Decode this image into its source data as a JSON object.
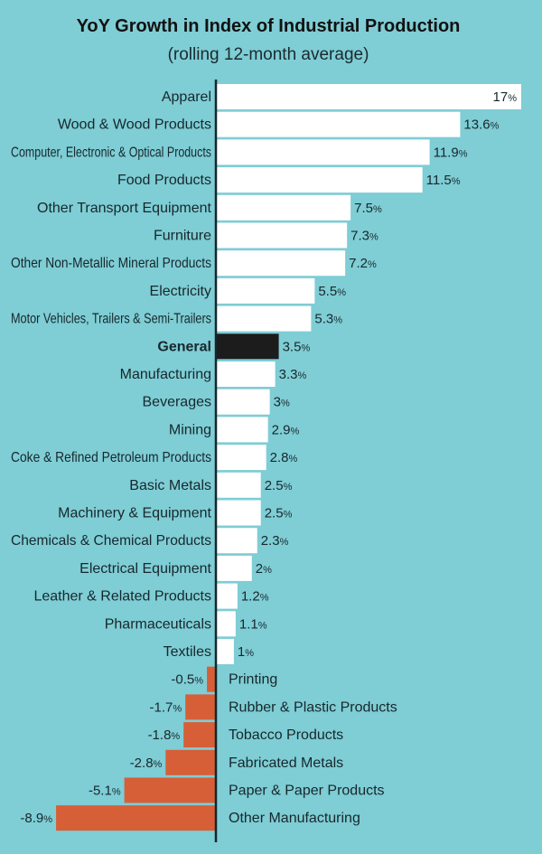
{
  "chart_data": {
    "type": "bar",
    "orientation": "horizontal",
    "title": "YoY Growth in Index of Industrial Production",
    "subtitle": "(rolling 12-month average)",
    "unit": "%",
    "categories": [
      "Apparel",
      "Wood & Wood Products",
      "Computer, Electronic & Optical Products",
      "Food Products",
      "Other Transport Equipment",
      "Furniture",
      "Other Non-Metallic Mineral Products",
      "Electricity",
      "Motor Vehicles, Trailers & Semi-Trailers",
      "General",
      "Manufacturing",
      "Beverages",
      "Mining",
      "Coke & Refined Petroleum Products",
      "Basic Metals",
      "Machinery & Equipment",
      "Chemicals & Chemical Products",
      "Electrical Equipment",
      "Leather & Related Products",
      "Pharmaceuticals",
      "Textiles",
      "Printing",
      "Rubber & Plastic Products",
      "Tobacco Products",
      "Fabricated Metals",
      "Paper & Paper Products",
      "Other Manufacturing"
    ],
    "values": [
      17,
      13.6,
      11.9,
      11.5,
      7.5,
      7.3,
      7.2,
      5.5,
      5.3,
      3.5,
      3.3,
      3,
      2.9,
      2.8,
      2.5,
      2.5,
      2.3,
      2,
      1.2,
      1.1,
      1,
      -0.5,
      -1.7,
      -1.8,
      -2.8,
      -5.1,
      -8.9
    ],
    "value_labels": [
      "17",
      "13.6",
      "11.9",
      "11.5",
      "7.5",
      "7.3",
      "7.2",
      "5.5",
      "5.3",
      "3.5",
      "3.3",
      "3",
      "2.9",
      "2.8",
      "2.5",
      "2.5",
      "2.3",
      "2",
      "1.2",
      "1.1",
      "1",
      "-0.5",
      "-1.7",
      "-1.8",
      "-2.8",
      "-5.1",
      "-8.9"
    ],
    "highlight": "General",
    "xlim": [
      -9,
      17
    ],
    "grid": false,
    "colors": {
      "background": "#7fcdd5",
      "positive": "#ffffff",
      "negative": "#d65f37",
      "highlight": "#1c1c1c",
      "axis": "#14262a"
    }
  }
}
